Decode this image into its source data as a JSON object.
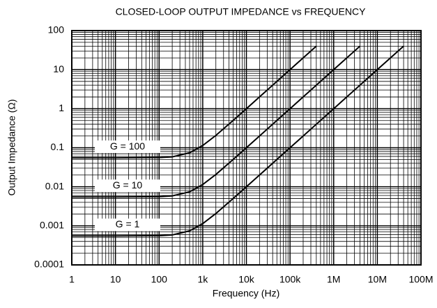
{
  "chart_data": {
    "type": "line",
    "title": "CLOSED-LOOP OUTPUT IMPEDANCE vs FREQUENCY",
    "x_label": "Frequency (Hz)",
    "y_label": "Output Impedance (Ω)",
    "xscale": "log",
    "yscale": "log",
    "grid": true,
    "xlim": [
      1,
      100000000
    ],
    "ylim": [
      0.0001,
      100
    ],
    "xticks": [
      1,
      10,
      100,
      {
        "value": 1000,
        "label": "1k"
      },
      {
        "value": 10000,
        "label": "10k"
      },
      {
        "value": 100000,
        "label": "100k"
      },
      {
        "value": 1000000,
        "label": "1M"
      },
      {
        "value": 10000000,
        "label": "10M"
      },
      {
        "value": 100000000,
        "label": "100M"
      }
    ],
    "yticks": [
      100,
      10,
      1,
      0.1,
      0.01,
      0.001,
      0.0001
    ],
    "x": [
      1,
      10,
      100,
      200,
      500,
      1000,
      2000,
      5000,
      10000,
      20000,
      50000,
      100000,
      200000,
      400000,
      1000000,
      2000000,
      4000000,
      10000000,
      20000000,
      40000000
    ],
    "series": [
      {
        "name": "G = 100",
        "color": "#000000",
        "values": [
          0.055,
          0.055,
          0.0559,
          0.0585,
          0.0743,
          0.114,
          0.207,
          0.503,
          1,
          2,
          5,
          10,
          20,
          40,
          null,
          null,
          null,
          null,
          null,
          null
        ]
      },
      {
        "name": "G = 10",
        "color": "#000000",
        "values": [
          0.0055,
          0.0055,
          0.00559,
          0.00585,
          0.00743,
          0.0114,
          0.0207,
          0.0503,
          0.1,
          0.2,
          0.5,
          1,
          2,
          4,
          10,
          20,
          40,
          null,
          null,
          null
        ]
      },
      {
        "name": "G = 1",
        "color": "#000000",
        "values": [
          0.00055,
          0.00055,
          0.000559,
          0.000585,
          0.000743,
          0.00114,
          0.00207,
          0.00503,
          0.01,
          0.02,
          0.05,
          0.1,
          0.2,
          0.4,
          1,
          2,
          4,
          10,
          20,
          40
        ]
      }
    ]
  }
}
